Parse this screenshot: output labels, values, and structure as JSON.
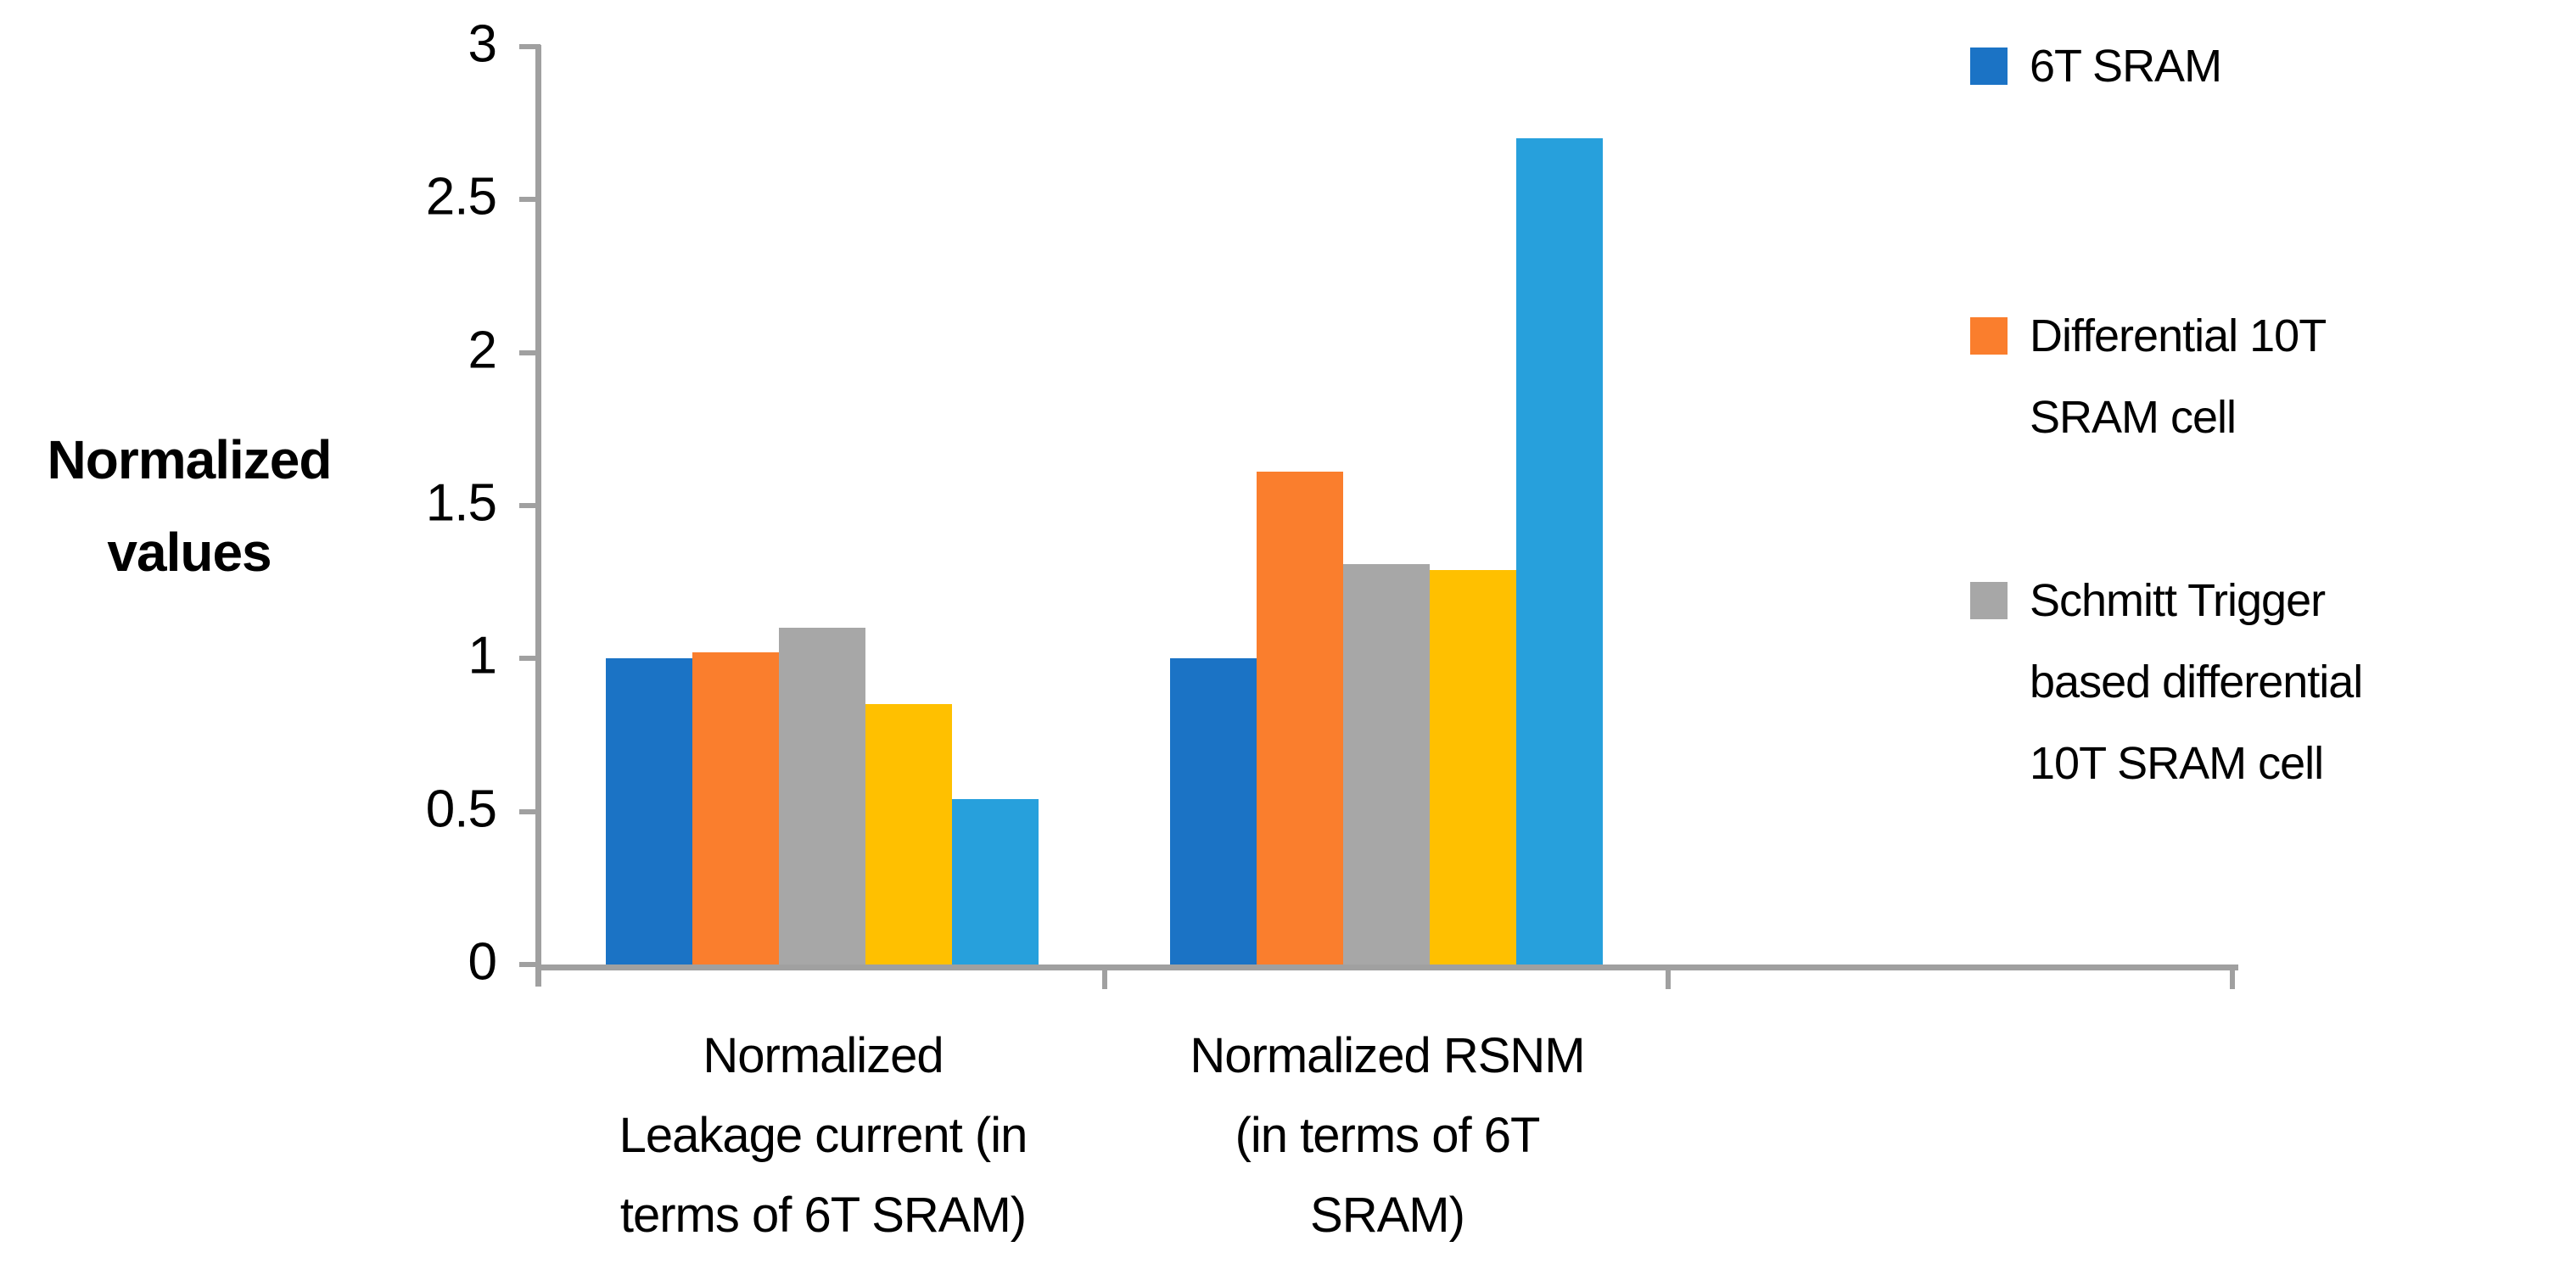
{
  "chart_data": {
    "type": "bar",
    "title": "",
    "ylabel": "Normalized values",
    "xlabel": "",
    "categories": [
      "Normalized\nLeakage current (in\nterms of 6T SRAM)",
      "Normalized RSNM\n(in terms of 6T\nSRAM)"
    ],
    "series": [
      {
        "name": "6T SRAM",
        "color": "#1B73C5",
        "values": [
          1.0,
          1.0
        ]
      },
      {
        "name": "Differential 10T\nSRAM cell",
        "color": "#FA7E2D",
        "values": [
          1.02,
          1.61
        ]
      },
      {
        "name": "Schmitt Trigger\nbased differential\n10T SRAM cell",
        "color": "#A7A7A7",
        "values": [
          1.1,
          1.31
        ]
      },
      {
        "name": "",
        "color": "#FFC000",
        "values": [
          0.85,
          1.29
        ]
      },
      {
        "name": "",
        "color": "#27A0DC",
        "values": [
          0.54,
          2.7
        ]
      }
    ],
    "ylim": [
      0,
      3
    ],
    "ytick_values": [
      0,
      0.5,
      1,
      1.5,
      2,
      2.5,
      3
    ],
    "ytick_labels": [
      "0",
      "0.5",
      "1",
      "1.5",
      "2",
      "2.5",
      "3"
    ],
    "x_slot_count": 3,
    "grid": false,
    "legend_position": "right",
    "legend_visible_entries": 3,
    "axis_color": "#A0A0A0",
    "text_color": "#000000",
    "background_color": "#FFFFFF"
  }
}
